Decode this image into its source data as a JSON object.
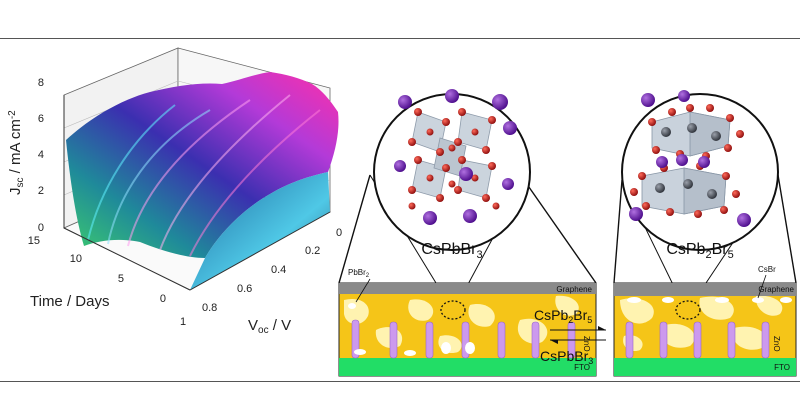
{
  "plot3d": {
    "z_axis_label": "J",
    "z_axis_label_sub": "sc",
    "z_axis_label_unit": " / mA cm",
    "z_axis_label_sup": "-2",
    "z_ticks": [
      "8",
      "6",
      "4",
      "2",
      "0"
    ],
    "y_axis_label": "Time / Days",
    "y_ticks": [
      "15",
      "10",
      "5",
      "0"
    ],
    "x_axis_label": "V",
    "x_axis_label_sub": "oc",
    "x_axis_label_unit": " / V",
    "x_ticks": [
      "0",
      "0.2",
      "0.4",
      "0.6",
      "0.8",
      "1"
    ]
  },
  "crystals": {
    "left": {
      "formula_base": "CsPbBr",
      "formula_sub": "3"
    },
    "right": {
      "formula_part1": "CsPb",
      "formula_sub1": "2",
      "formula_part2": "Br",
      "formula_sub2": "5"
    }
  },
  "device": {
    "left": {
      "pbbr2_label_base": "PbBr",
      "pbbr2_label_sub": "2",
      "graphene_label": "Graphene",
      "zno_label": "ZnO",
      "fto_label": "FTO"
    },
    "right": {
      "csbr_label": "CsBr",
      "graphene_label": "Graphene",
      "zno_label": "ZnO",
      "fto_label": "FTO"
    }
  },
  "reaction": {
    "forward_base": "CsPb",
    "forward_sub1": "2",
    "forward_mid": "Br",
    "forward_sub2": "5",
    "backward_base": "CsPbBr",
    "backward_sub": "3"
  },
  "colors": {
    "surface_start": "#3fd06a",
    "surface_mid": "#2a3aa8",
    "surface_end": "#ff2fa8",
    "perovskite": "#f5c518",
    "pale_phase": "#fff3b0",
    "graphene": "#8a8a8a",
    "fto": "#22dd66",
    "zno_rods": "#cc99ee",
    "cs_atom": "#6a1fa8",
    "br_atom": "#cc2222",
    "octahedron": "#c9d2dc"
  }
}
